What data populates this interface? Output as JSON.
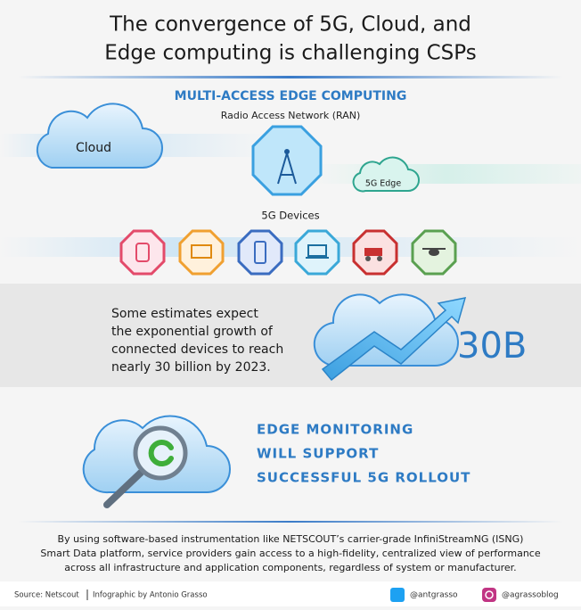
{
  "header": {
    "title_lines": [
      "The convergence of 5G, Cloud, and",
      "Edge computing is challenging CSPs"
    ]
  },
  "mec": {
    "heading": "MULTI-ACCESS EDGE COMPUTING",
    "subheading": "Radio Access Network (RAN)",
    "cloud": "Cloud",
    "edge": "5G Edge",
    "devices": "5G Devices"
  },
  "stat": {
    "lines": [
      "Some estimates expect",
      "the exponential growth of",
      "connected devices to reach",
      "nearly 30 billion by 2023."
    ],
    "figure": "30B"
  },
  "monitoring": {
    "lines": [
      "EDGE MONITORING",
      "WILL SUPPORT",
      "SUCCESSFUL 5G ROLLOUT"
    ]
  },
  "body": {
    "lines": [
      "By using software-based instrumentation like NETSCOUT’s carrier-grade InfiniStreamNG (ISNG)",
      "Smart Data platform, service providers gain access to a high-fidelity, centralized view of performance",
      "across all infrastructure and application components, regardless of system or manufacturer."
    ]
  },
  "footer": {
    "source": "Source: Netscout",
    "credit": "Infographic by Antonio Grasso",
    "twitter": "@antgrasso",
    "instagram": "@agrassoblog"
  }
}
